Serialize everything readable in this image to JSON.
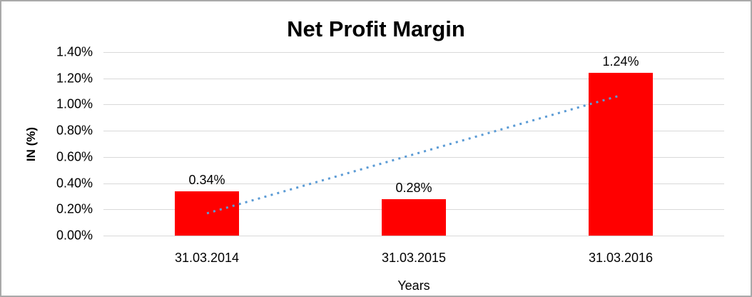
{
  "chart_data": {
    "type": "bar",
    "title": "Net Profit Margin",
    "xlabel": "Years",
    "ylabel": "IN (%)",
    "categories": [
      "31.03.2014",
      "31.03.2015",
      "31.03.2016"
    ],
    "values": [
      0.34,
      0.28,
      1.24
    ],
    "value_labels": [
      "0.34%",
      "0.28%",
      "1.24%"
    ],
    "ylim": [
      0,
      1.4
    ],
    "ytick_step": 0.2,
    "ytick_labels": [
      "0.00%",
      "0.20%",
      "0.40%",
      "0.60%",
      "0.80%",
      "1.00%",
      "1.20%",
      "1.40%"
    ],
    "grid": true,
    "legend": "none",
    "bar_color": "#ff0000",
    "gridline_color": "#d9d9d9",
    "trendline": {
      "type": "linear",
      "style": "dotted",
      "color": "#5b9bd5",
      "start_value": 0.17,
      "end_value": 1.07
    }
  }
}
